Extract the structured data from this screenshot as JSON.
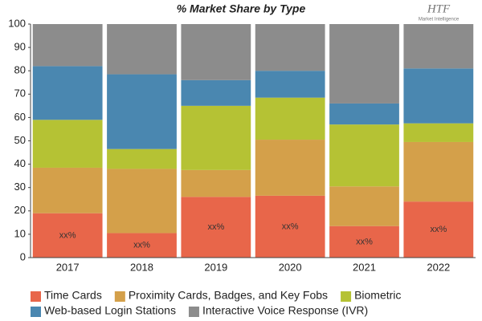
{
  "chart_data": {
    "type": "stacked_bar",
    "title": "% Market Share by Type",
    "logo": {
      "text": "HTF",
      "subtext": "Market Intelligence"
    },
    "categories": [
      "2017",
      "2018",
      "2019",
      "2020",
      "2021",
      "2022"
    ],
    "series": [
      {
        "name": "Time Cards",
        "color": "#e8664a",
        "values": [
          19,
          10.5,
          26,
          26.5,
          13.5,
          24
        ]
      },
      {
        "name": "Proximity Cards, Badges, and Key Fobs",
        "color": "#d4a04a",
        "values": [
          19.5,
          27.5,
          11.5,
          24,
          17,
          25.5
        ]
      },
      {
        "name": "Biometric",
        "color": "#b5c234",
        "values": [
          20.5,
          8.5,
          27.5,
          18,
          26.5,
          8
        ]
      },
      {
        "name": "Web-based Login Stations",
        "color": "#4a87b0",
        "values": [
          23,
          32,
          11,
          11.5,
          9,
          23.5
        ]
      },
      {
        "name": "Interactive Voice Response (IVR)",
        "color": "#8c8c8c",
        "values": [
          18,
          21.5,
          24,
          20,
          34,
          19
        ]
      }
    ],
    "annotations": [
      "xx%",
      "xx%",
      "xx%",
      "xx%",
      "xx%",
      "xx%"
    ],
    "ylim": [
      0,
      100
    ],
    "yticks": [
      0,
      10,
      20,
      30,
      40,
      50,
      60,
      70,
      80,
      90,
      100
    ],
    "grid": false
  }
}
